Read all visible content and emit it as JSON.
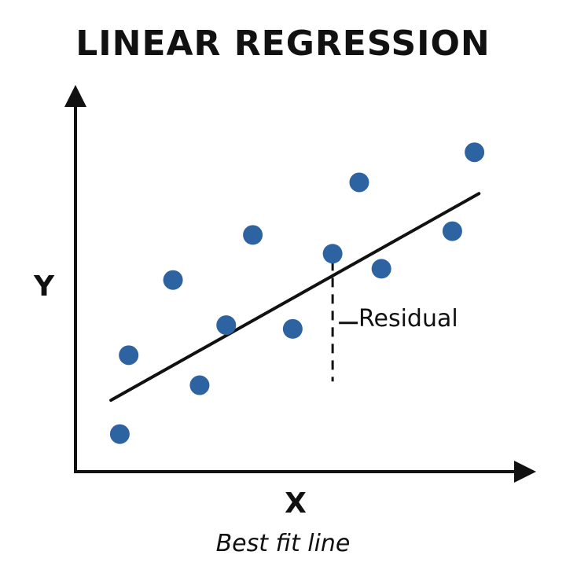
{
  "title": "LINEAR REGRESSION",
  "caption": "Best fit line",
  "chart_data": {
    "type": "scatter",
    "xlabel": "X",
    "ylabel": "Y",
    "xlim": [
      0,
      10
    ],
    "ylim": [
      0,
      10
    ],
    "points": [
      {
        "x": 1.0,
        "y": 1.0
      },
      {
        "x": 1.2,
        "y": 3.1
      },
      {
        "x": 2.2,
        "y": 5.1
      },
      {
        "x": 2.8,
        "y": 2.3
      },
      {
        "x": 3.4,
        "y": 3.9
      },
      {
        "x": 4.0,
        "y": 6.3
      },
      {
        "x": 4.9,
        "y": 3.8
      },
      {
        "x": 5.8,
        "y": 5.8
      },
      {
        "x": 6.4,
        "y": 7.7
      },
      {
        "x": 6.9,
        "y": 5.4
      },
      {
        "x": 8.5,
        "y": 6.4
      },
      {
        "x": 9.0,
        "y": 8.5
      }
    ],
    "fit_line": {
      "x1": 0.8,
      "y1": 1.9,
      "x2": 9.1,
      "y2": 7.4
    },
    "residual": {
      "x": 5.8,
      "y_top": 5.6,
      "y_bottom": 2.4,
      "label": "Residual"
    },
    "colors": {
      "points": "#2e63a2",
      "line": "#111111"
    }
  }
}
